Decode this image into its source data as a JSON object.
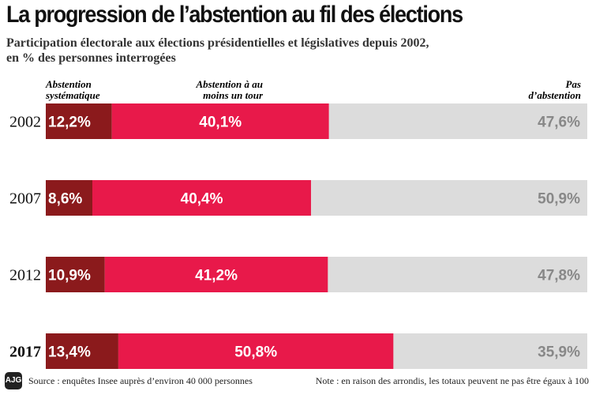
{
  "header": {
    "title": "La progression de l’abstention au fil des élections",
    "subtitle_line1": "Participation électorale aux élections présidentielles et législatives depuis 2002,",
    "subtitle_line2": "en % des personnes interrogées"
  },
  "legend": {
    "abstention_systematique": [
      "Abstention",
      "systématique"
    ],
    "abstention_un_tour": [
      "Abstention à au",
      "moins un tour"
    ],
    "pas_abstention": [
      "Pas",
      "d’abstention"
    ]
  },
  "colors": {
    "abstention_systematique": "#8b1a1c",
    "abstention_un_tour": "#e8194a",
    "pas_abstention": "#dcdcdc",
    "label_light": "#ffffff",
    "label_dark": "#888888"
  },
  "chart_data": {
    "type": "bar",
    "orientation": "horizontal",
    "stacked": true,
    "categories": [
      "2002",
      "2007",
      "2012",
      "2017"
    ],
    "highlighted_category": "2017",
    "series": [
      {
        "name": "Abstention systématique",
        "values": [
          12.2,
          8.6,
          10.9,
          13.4
        ],
        "labels": [
          "12,2%",
          "8,6%",
          "10,9%",
          "13,4%"
        ]
      },
      {
        "name": "Abstention à au moins un tour",
        "values": [
          40.1,
          40.4,
          41.2,
          50.8
        ],
        "labels": [
          "40,1%",
          "40,4%",
          "41,2%",
          "50,8%"
        ]
      },
      {
        "name": "Pas d’abstention",
        "values": [
          47.6,
          50.9,
          47.8,
          35.9
        ],
        "labels": [
          "47,6%",
          "50,9%",
          "47,8%",
          "35,9%"
        ]
      }
    ],
    "xlim": [
      0,
      100
    ]
  },
  "footer": {
    "logo_text": "AJG",
    "source": "Source : enquêtes Insee auprès d’environ 40 000 personnes",
    "note": "Note : en raison des arrondis, les totaux peuvent ne pas être égaux à 100"
  }
}
